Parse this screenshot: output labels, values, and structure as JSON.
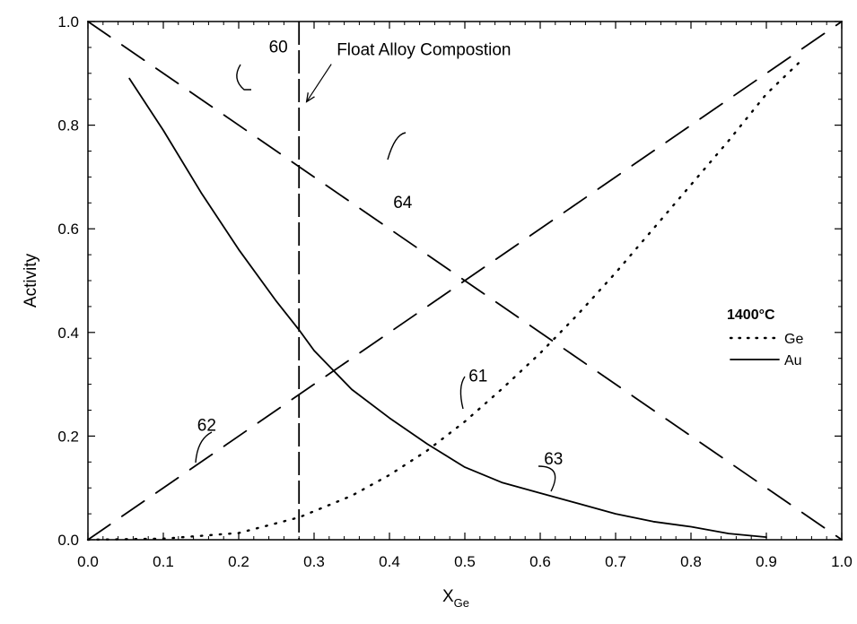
{
  "chart_data": {
    "type": "line",
    "xlabel": "X",
    "xlabel_sub": "Ge",
    "ylabel": "Activity",
    "xlim": [
      0.0,
      1.0
    ],
    "ylim": [
      0.0,
      1.0
    ],
    "x_ticks": [
      "0.0",
      "0.1",
      "0.2",
      "0.3",
      "0.4",
      "0.5",
      "0.6",
      "0.7",
      "0.8",
      "0.9",
      "1.0"
    ],
    "y_ticks": [
      "0.0",
      "0.2",
      "0.4",
      "0.6",
      "0.8",
      "1.0"
    ],
    "grid": false,
    "legend": {
      "placement": "right",
      "title": "1400°C",
      "entries": [
        {
          "label": "Ge",
          "style": "dotted"
        },
        {
          "label": "Au",
          "style": "solid"
        }
      ]
    },
    "series": [
      {
        "name": "Ge",
        "style": "dotted",
        "x": [
          0.0,
          0.1,
          0.2,
          0.28,
          0.35,
          0.4,
          0.45,
          0.5,
          0.55,
          0.6,
          0.65,
          0.7,
          0.75,
          0.8,
          0.85,
          0.9,
          0.95
        ],
        "y": [
          0.0,
          0.002,
          0.013,
          0.043,
          0.085,
          0.125,
          0.172,
          0.228,
          0.292,
          0.36,
          0.435,
          0.515,
          0.6,
          0.685,
          0.77,
          0.86,
          0.93
        ]
      },
      {
        "name": "Au",
        "style": "solid",
        "x": [
          0.055,
          0.1,
          0.15,
          0.2,
          0.25,
          0.28,
          0.3,
          0.35,
          0.4,
          0.45,
          0.5,
          0.55,
          0.6,
          0.65,
          0.7,
          0.75,
          0.8,
          0.85,
          0.9
        ],
        "y": [
          0.89,
          0.79,
          0.67,
          0.56,
          0.46,
          0.405,
          0.365,
          0.29,
          0.235,
          0.185,
          0.14,
          0.11,
          0.09,
          0.07,
          0.05,
          0.035,
          0.025,
          0.012,
          0.005
        ]
      },
      {
        "style": "dashed",
        "x": [
          0.0,
          1.0
        ],
        "y": [
          0.0,
          1.0
        ]
      },
      {
        "style": "dashed",
        "x": [
          0.0,
          1.0
        ],
        "y": [
          1.0,
          0.0
        ]
      }
    ],
    "vertical_line": {
      "x": 0.28,
      "style": "dashed"
    },
    "annotations": [
      {
        "text": "Float Alloy Compostion",
        "x": 0.33,
        "y": 0.935,
        "arrow_to": [
          0.29,
          0.845
        ]
      },
      {
        "text": "60",
        "x": 0.24,
        "y": 0.94
      },
      {
        "text": "64",
        "x": 0.405,
        "y": 0.64
      },
      {
        "text": "61",
        "x": 0.505,
        "y": 0.305
      },
      {
        "text": "62",
        "x": 0.145,
        "y": 0.21
      },
      {
        "text": "63",
        "x": 0.605,
        "y": 0.145
      }
    ]
  }
}
